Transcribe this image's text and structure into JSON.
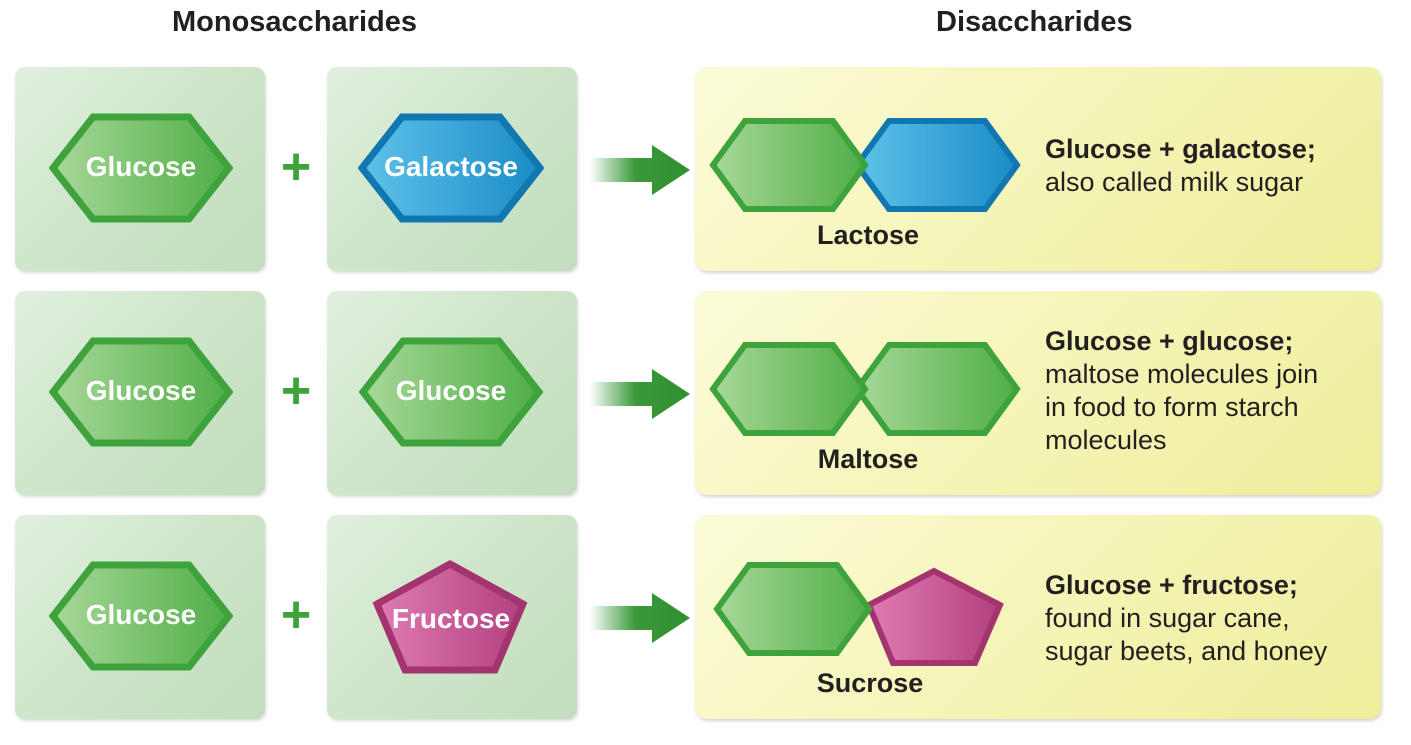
{
  "headings": {
    "monosaccharides": "Monosaccharides",
    "disaccharides": "Disaccharides"
  },
  "operator": "+",
  "colors": {
    "glucose": "#5cb85c",
    "galactose": "#1b95cf",
    "fructose": "#c0508f",
    "mono_box": "#cfe6cb",
    "di_box": "#f4f4b4",
    "arrow": "#3a9a3a"
  },
  "rows": [
    {
      "left": "Glucose",
      "right": "Galactose",
      "product": "Lactose",
      "desc_title": "Glucose + galactose;",
      "desc_body": "also called milk sugar"
    },
    {
      "left": "Glucose",
      "right": "Glucose",
      "product": "Maltose",
      "desc_title": "Glucose + glucose;",
      "desc_body": "maltose molecules join\nin food to form starch\nmolecules"
    },
    {
      "left": "Glucose",
      "right": "Fructose",
      "product": "Sucrose",
      "desc_title": "Glucose + fructose;",
      "desc_body": "found in sugar cane,\nsugar beets, and honey"
    }
  ]
}
